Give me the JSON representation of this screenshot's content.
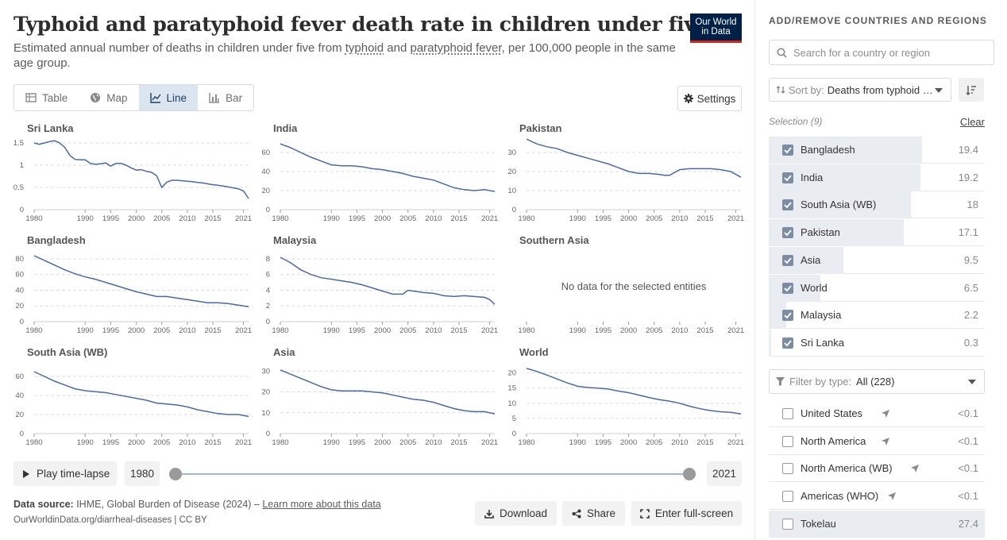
{
  "header": {
    "title": "Typhoid and paratyphoid fever death rate in children under five",
    "subtitle_pre": "Estimated annual number of deaths in children under five from ",
    "subtitle_link1": "typhoid",
    "subtitle_mid": " and ",
    "subtitle_link2": "paratyphoid fever",
    "subtitle_post": ", per 100,000 people in the same age group.",
    "logo_line1": "Our World",
    "logo_line2": "in Data"
  },
  "tabs": [
    {
      "label": "Table",
      "icon": "table-icon",
      "active": false
    },
    {
      "label": "Map",
      "icon": "globe-icon",
      "active": false
    },
    {
      "label": "Line",
      "icon": "line-chart-icon",
      "active": true
    },
    {
      "label": "Bar",
      "icon": "bar-chart-icon",
      "active": false
    }
  ],
  "settings_label": "Settings",
  "chart_data": [
    {
      "type": "line",
      "title": "Sri Lanka",
      "ylim": [
        0,
        1.5
      ],
      "yticks": [
        0,
        0.5,
        1,
        1.5
      ],
      "ytick_labels": [
        "0",
        "0.5",
        "1",
        "1.5"
      ],
      "xticks": [
        1980,
        1990,
        1995,
        2000,
        2005,
        2010,
        2015,
        2021
      ],
      "x": [
        1980,
        1981,
        1982,
        1983,
        1984,
        1985,
        1986,
        1987,
        1988,
        1989,
        1990,
        1991,
        1992,
        1993,
        1994,
        1995,
        1996,
        1997,
        1998,
        1999,
        2000,
        2001,
        2002,
        2003,
        2004,
        2005,
        2006,
        2007,
        2008,
        2009,
        2010,
        2011,
        2012,
        2013,
        2014,
        2015,
        2016,
        2017,
        2018,
        2019,
        2020,
        2021,
        2022
      ],
      "y": [
        1.5,
        1.47,
        1.5,
        1.53,
        1.55,
        1.5,
        1.4,
        1.22,
        1.13,
        1.12,
        1.12,
        1.04,
        1.02,
        1.03,
        1.05,
        0.98,
        1.04,
        1.04,
        1.0,
        0.94,
        0.89,
        0.9,
        0.86,
        0.84,
        0.76,
        0.5,
        0.62,
        0.66,
        0.66,
        0.65,
        0.64,
        0.63,
        0.61,
        0.6,
        0.58,
        0.56,
        0.55,
        0.53,
        0.51,
        0.49,
        0.47,
        0.42,
        0.25
      ]
    },
    {
      "type": "line",
      "title": "India",
      "ylim": [
        0,
        70
      ],
      "yticks": [
        0,
        20,
        40,
        60
      ],
      "ytick_labels": [
        "0",
        "20",
        "40",
        "60"
      ],
      "xticks": [
        1980,
        1990,
        1995,
        2000,
        2005,
        2010,
        2015,
        2021
      ],
      "x": [
        1980,
        1982,
        1984,
        1986,
        1988,
        1990,
        1992,
        1994,
        1996,
        1998,
        2000,
        2002,
        2004,
        2006,
        2008,
        2010,
        2012,
        2014,
        2016,
        2018,
        2020,
        2022
      ],
      "y": [
        69,
        65,
        60,
        55,
        51,
        47,
        46,
        46,
        45,
        43,
        42,
        40,
        38,
        35,
        33,
        31,
        27,
        23,
        21,
        20,
        21,
        19
      ]
    },
    {
      "type": "line",
      "title": "Pakistan",
      "ylim": [
        0,
        35
      ],
      "yticks": [
        0,
        10,
        20,
        30
      ],
      "ytick_labels": [
        "0",
        "10",
        "20",
        "30"
      ],
      "xticks": [
        1980,
        1990,
        1995,
        2000,
        2005,
        2010,
        2015,
        2021
      ],
      "x": [
        1980,
        1982,
        1984,
        1986,
        1988,
        1990,
        1992,
        1994,
        1996,
        1998,
        2000,
        2002,
        2004,
        2006,
        2007,
        2008,
        2010,
        2012,
        2014,
        2016,
        2018,
        2020,
        2022
      ],
      "y": [
        37,
        34.5,
        33,
        32,
        30,
        28.5,
        27,
        25.5,
        24,
        22,
        20,
        19,
        19,
        18.5,
        18,
        18,
        21,
        21.5,
        21.5,
        21.5,
        21,
        20,
        17
      ]
    },
    {
      "type": "line",
      "title": "Bangladesh",
      "ylim": [
        0,
        85
      ],
      "yticks": [
        0,
        20,
        40,
        60,
        80
      ],
      "ytick_labels": [
        "0",
        "20",
        "40",
        "60",
        "80"
      ],
      "xticks": [
        1980,
        1990,
        1995,
        2000,
        2005,
        2010,
        2015,
        2021
      ],
      "x": [
        1980,
        1982,
        1984,
        1986,
        1988,
        1990,
        1992,
        1994,
        1996,
        1998,
        2000,
        2002,
        2004,
        2006,
        2008,
        2010,
        2012,
        2014,
        2016,
        2018,
        2020,
        2022
      ],
      "y": [
        84,
        78,
        72,
        66,
        61,
        57,
        54,
        50,
        46,
        42,
        38,
        35,
        32,
        32,
        30,
        28,
        26,
        24,
        24,
        23,
        21,
        19
      ]
    },
    {
      "type": "line",
      "title": "Malaysia",
      "ylim": [
        0,
        8.5
      ],
      "yticks": [
        0,
        2,
        4,
        6,
        8
      ],
      "ytick_labels": [
        "0",
        "2",
        "4",
        "6",
        "8"
      ],
      "xticks": [
        1980,
        1990,
        1995,
        2000,
        2005,
        2010,
        2015,
        2021
      ],
      "x": [
        1980,
        1982,
        1984,
        1986,
        1988,
        1990,
        1992,
        1994,
        1996,
        1998,
        2000,
        2002,
        2004,
        2005,
        2006,
        2008,
        2010,
        2012,
        2014,
        2016,
        2018,
        2020,
        2021,
        2022
      ],
      "y": [
        8.2,
        7.5,
        6.6,
        6.0,
        5.6,
        5.4,
        5.2,
        5.0,
        4.7,
        4.3,
        3.9,
        3.5,
        3.5,
        4.0,
        3.9,
        3.7,
        3.6,
        3.3,
        3.2,
        3.3,
        3.2,
        3.1,
        2.8,
        2.2
      ]
    },
    {
      "type": "line",
      "title": "Southern Asia",
      "no_data": "No data for the selected entities",
      "xticks": [
        1980,
        1990,
        1995,
        2000,
        2005,
        2010,
        2015,
        2021
      ],
      "x": [],
      "y": []
    },
    {
      "type": "line",
      "title": "South Asia (WB)",
      "ylim": [
        0,
        70
      ],
      "yticks": [
        0,
        20,
        40,
        60
      ],
      "ytick_labels": [
        "0",
        "20",
        "40",
        "60"
      ],
      "xticks": [
        1980,
        1990,
        1995,
        2000,
        2005,
        2010,
        2015,
        2021
      ],
      "x": [
        1980,
        1982,
        1984,
        1986,
        1988,
        1990,
        1992,
        1994,
        1996,
        1998,
        2000,
        2002,
        2004,
        2006,
        2008,
        2010,
        2012,
        2014,
        2016,
        2018,
        2020,
        2022
      ],
      "y": [
        65,
        60,
        55,
        51,
        47,
        45,
        44,
        43,
        41,
        39,
        37,
        35,
        32,
        31,
        30,
        28,
        25,
        23,
        21,
        20,
        20,
        18
      ]
    },
    {
      "type": "line",
      "title": "Asia",
      "ylim": [
        0,
        32
      ],
      "yticks": [
        0,
        10,
        20,
        30
      ],
      "ytick_labels": [
        "0",
        "10",
        "20",
        "30"
      ],
      "xticks": [
        1980,
        1990,
        1995,
        2000,
        2005,
        2010,
        2015,
        2021
      ],
      "x": [
        1980,
        1982,
        1984,
        1986,
        1988,
        1990,
        1992,
        1994,
        1996,
        1998,
        2000,
        2002,
        2004,
        2006,
        2008,
        2010,
        2012,
        2014,
        2016,
        2018,
        2020,
        2022
      ],
      "y": [
        30.5,
        28.5,
        26.5,
        24.5,
        22.5,
        21,
        20.5,
        20.5,
        20.5,
        20,
        19.5,
        18.5,
        17.5,
        16.5,
        16,
        15,
        13.5,
        12,
        11,
        10.5,
        10.5,
        9.5
      ]
    },
    {
      "type": "line",
      "title": "World",
      "ylim": [
        0,
        22
      ],
      "yticks": [
        0,
        5,
        10,
        15,
        20
      ],
      "ytick_labels": [
        "0",
        "5",
        "10",
        "15",
        "20"
      ],
      "xticks": [
        1980,
        1990,
        1995,
        2000,
        2005,
        2010,
        2015,
        2021
      ],
      "x": [
        1980,
        1982,
        1984,
        1986,
        1988,
        1990,
        1992,
        1994,
        1996,
        1998,
        2000,
        2002,
        2004,
        2006,
        2008,
        2010,
        2012,
        2014,
        2016,
        2018,
        2020,
        2022
      ],
      "y": [
        21.5,
        20.5,
        19.3,
        18,
        16.7,
        15.6,
        15.2,
        15,
        14.7,
        14,
        13.5,
        12.7,
        11.9,
        11.2,
        10.7,
        10,
        9,
        8.2,
        7.6,
        7.2,
        7,
        6.5
      ]
    }
  ],
  "timeline": {
    "play_label": "Play time-lapse",
    "start_year": "1980",
    "end_year": "2021"
  },
  "footer": {
    "source_label": "Data source:",
    "source_text": " IHME, Global Burden of Disease (2024) – ",
    "source_link": "Learn more about this data",
    "url": "OurWorldinData.org/diarrheal-diseases | CC BY",
    "download": "Download",
    "share": "Share",
    "fullscreen": "Enter full-screen"
  },
  "sidebar": {
    "heading": "ADD/REMOVE COUNTRIES AND REGIONS",
    "search_placeholder": "Search for a country or region",
    "sort_label": "Sort by:",
    "sort_value": "Deaths from typhoid …",
    "selection_label": "Selection (9)",
    "clear_label": "Clear",
    "max_value": 27.4,
    "selected": [
      {
        "name": "Bangladesh",
        "value": "19.4",
        "num": 19.4
      },
      {
        "name": "India",
        "value": "19.2",
        "num": 19.2
      },
      {
        "name": "South Asia (WB)",
        "value": "18",
        "num": 18
      },
      {
        "name": "Pakistan",
        "value": "17.1",
        "num": 17.1
      },
      {
        "name": "Asia",
        "value": "9.5",
        "num": 9.5
      },
      {
        "name": "World",
        "value": "6.5",
        "num": 6.5
      },
      {
        "name": "Malaysia",
        "value": "2.2",
        "num": 2.2
      },
      {
        "name": "Sri Lanka",
        "value": "0.3",
        "num": 0.3
      }
    ],
    "filter_label": "Filter by type:",
    "filter_value": "All (228)",
    "unselected": [
      {
        "name": "United States",
        "value": "<0.1",
        "num": 0,
        "arrow": true
      },
      {
        "name": "North America",
        "value": "<0.1",
        "num": 0,
        "arrow": true
      },
      {
        "name": "North America (WB)",
        "value": "<0.1",
        "num": 0,
        "arrow": true
      },
      {
        "name": "Americas (WHO)",
        "value": "<0.1",
        "num": 0,
        "arrow": true
      },
      {
        "name": "Tokelau",
        "value": "27.4",
        "num": 27.4,
        "arrow": false
      }
    ]
  }
}
